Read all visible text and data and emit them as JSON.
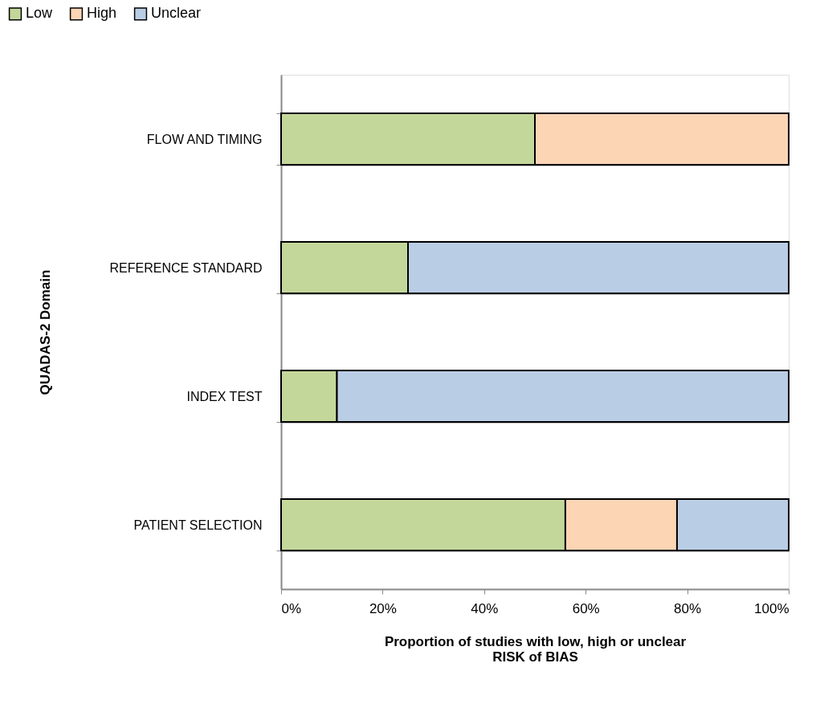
{
  "chart_data": {
    "type": "bar",
    "orientation": "horizontal",
    "stacked": true,
    "categories": [
      "FLOW AND TIMING",
      "REFERENCE STANDARD",
      "INDEX TEST",
      "PATIENT SELECTION"
    ],
    "series": [
      {
        "name": "Low",
        "color": "#c4d79b",
        "values": [
          50,
          25,
          11,
          56
        ]
      },
      {
        "name": "High",
        "color": "#fcd5b5",
        "values": [
          50,
          0,
          0,
          22
        ]
      },
      {
        "name": "Unclear",
        "color": "#b9cde5",
        "values": [
          0,
          75,
          89,
          22
        ]
      }
    ],
    "xlabel": "Proportion of studies with low, high or unclear\nRISK of BIAS",
    "ylabel": "QUADAS-2 Domain",
    "xlim": [
      0,
      100
    ],
    "xticks": [
      {
        "value": 0,
        "label": "0%"
      },
      {
        "value": 20,
        "label": "20%"
      },
      {
        "value": 40,
        "label": "40%"
      },
      {
        "value": 60,
        "label": "60%"
      },
      {
        "value": 80,
        "label": "80%"
      },
      {
        "value": 100,
        "label": "100%"
      }
    ],
    "grid": "y",
    "legend": "top left"
  }
}
